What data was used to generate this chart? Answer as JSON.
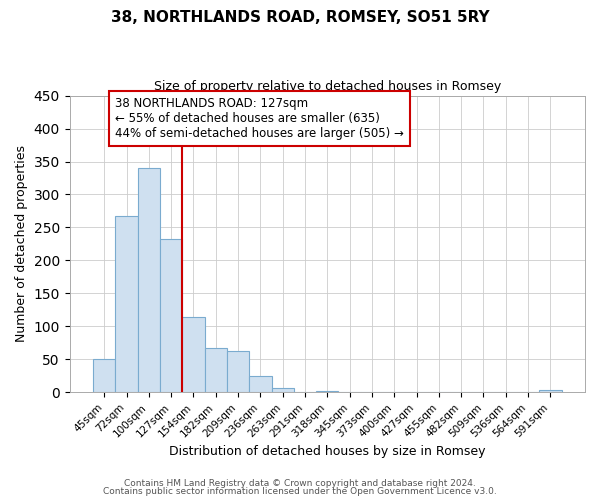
{
  "title": "38, NORTHLANDS ROAD, ROMSEY, SO51 5RY",
  "subtitle": "Size of property relative to detached houses in Romsey",
  "xlabel": "Distribution of detached houses by size in Romsey",
  "ylabel": "Number of detached properties",
  "bar_labels": [
    "45sqm",
    "72sqm",
    "100sqm",
    "127sqm",
    "154sqm",
    "182sqm",
    "209sqm",
    "236sqm",
    "263sqm",
    "291sqm",
    "318sqm",
    "345sqm",
    "373sqm",
    "400sqm",
    "427sqm",
    "455sqm",
    "482sqm",
    "509sqm",
    "536sqm",
    "564sqm",
    "591sqm"
  ],
  "bar_heights": [
    50,
    268,
    340,
    233,
    115,
    68,
    62,
    25,
    7,
    0,
    2,
    0,
    0,
    0,
    0,
    0,
    0,
    0,
    0,
    0,
    3
  ],
  "bar_color": "#cfe0f0",
  "bar_edge_color": "#7aabcf",
  "vline_x_index": 3,
  "vline_color": "#cc0000",
  "annotation_title": "38 NORTHLANDS ROAD: 127sqm",
  "annotation_line1": "← 55% of detached houses are smaller (635)",
  "annotation_line2": "44% of semi-detached houses are larger (505) →",
  "ylim": [
    0,
    450
  ],
  "yticks": [
    0,
    50,
    100,
    150,
    200,
    250,
    300,
    350,
    400,
    450
  ],
  "footer1": "Contains HM Land Registry data © Crown copyright and database right 2024.",
  "footer2": "Contains public sector information licensed under the Open Government Licence v3.0.",
  "fig_width": 6.0,
  "fig_height": 5.0,
  "dpi": 100
}
